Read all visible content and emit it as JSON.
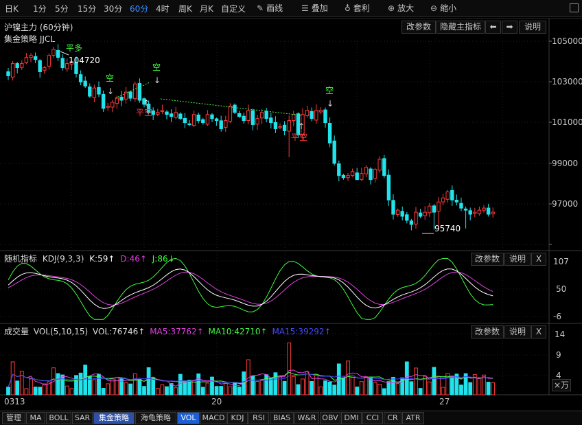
{
  "toolbar": {
    "periods": [
      "日K",
      "1分",
      "5分",
      "15分",
      "30分",
      "60分",
      "4时",
      "周K",
      "月K",
      "自定义"
    ],
    "active_period": "60分",
    "tools": {
      "draw": "画线",
      "overlay": "叠加",
      "arbitrage": "套利",
      "zoom_in": "放大",
      "zoom_out": "缩小"
    }
  },
  "main_panel": {
    "title": "沪镍主力 (60分钟)",
    "strategy_label": "集金策略 JJCL",
    "buttons": {
      "params": "改参数",
      "hide": "隐藏主指标",
      "help": "说明"
    },
    "price_axis": [
      "105000",
      "103000",
      "101000",
      "99000",
      "97000"
    ],
    "annotations": {
      "high_value": "104720",
      "low_value": "95740",
      "pingduo": "平多",
      "kong": "空",
      "pingkong": "平空"
    }
  },
  "kdj_panel": {
    "title": "随机指标",
    "name": "KDJ(9,3,3)",
    "k_text": "K:59↑",
    "d_text": "D:46↑",
    "j_text": "J:86↓",
    "axis": [
      "107",
      "50",
      "-6"
    ],
    "buttons": {
      "params": "改参数",
      "help": "说明",
      "close": "X"
    }
  },
  "vol_panel": {
    "title": "成交量",
    "name": "VOL(5,10,15)",
    "vol_text": "VOL:76746↑",
    "ma5_text": "MA5:37762↑",
    "ma10_text": "MA10:42710↑",
    "ma15_text": "MA15:39292↑",
    "axis": [
      "14",
      "9",
      "4"
    ],
    "unit_label": "×万",
    "buttons": {
      "params": "改参数",
      "help": "说明",
      "close": "X"
    }
  },
  "date_axis": [
    "0313",
    "20",
    "27"
  ],
  "bottom_tabs": [
    "管理",
    "MA",
    "BOLL",
    "SAR",
    "集金策略",
    "海龟策略",
    "VOL",
    "MACD",
    "KDJ",
    "RSI",
    "BIAS",
    "W&R",
    "OBV",
    "DMI",
    "CCI",
    "CR",
    "ATR"
  ],
  "colors": {
    "up": "#ff3a3a",
    "down": "#20e3ec",
    "active": "#3d8fff",
    "kdj_k": "#ffffff",
    "kdj_d": "#e040e0",
    "kdj_j": "#40ff40",
    "ma5": "#e040e0",
    "ma10": "#40ff40",
    "ma15": "#4040ff",
    "signal_sell": "#40ff40",
    "signal_buy": "#ff3a3a"
  },
  "chart_data": {
    "type": "candlestick",
    "symbol": "沪镍主力",
    "timeframe": "60分钟",
    "dates": [
      "0313",
      "20",
      "27"
    ],
    "price_ticks": [
      105000,
      103000,
      101000,
      99000,
      97000
    ],
    "closes": [
      103300,
      103900,
      103700,
      103900,
      104200,
      104300,
      104100,
      103500,
      103700,
      104300,
      104600,
      104200,
      103700,
      103900,
      104000,
      103400,
      103000,
      102800,
      102300,
      102700,
      102400,
      101700,
      101800,
      102000,
      102200,
      102100,
      102500,
      102200,
      102900,
      102100,
      101900,
      101500,
      101400,
      101500,
      101600,
      101400,
      101300,
      101500,
      101200,
      101000,
      100900,
      101400,
      101100,
      101000,
      101400,
      101200,
      101100,
      100700,
      101100,
      101800,
      101500,
      101300,
      101100,
      101600,
      100900,
      101200,
      101500,
      101200,
      101000,
      100700,
      100800,
      100600,
      101100,
      101400,
      100400,
      101400,
      101600,
      101200,
      101600,
      101600,
      101000,
      100000,
      99000,
      98400,
      98300,
      98400,
      98600,
      98200,
      98500,
      98800,
      98200,
      98700,
      99200,
      98400,
      97200,
      96500,
      96700,
      96400,
      96200,
      96000,
      96600,
      96400,
      96600,
      96900,
      96600,
      97100,
      97300,
      97600,
      97200,
      97100,
      96800,
      96700,
      96500,
      96600,
      96700,
      96800,
      96500,
      96600
    ],
    "high": 104720,
    "low": 95740,
    "kdj": {
      "range": [
        -6,
        107
      ],
      "K": 59,
      "D": 46,
      "J": 86
    },
    "volume": {
      "unit": "万",
      "ticks": [
        4,
        9,
        14
      ],
      "VOL": 76746,
      "MA5": 37762,
      "MA10": 42710,
      "MA15": 39292
    }
  }
}
